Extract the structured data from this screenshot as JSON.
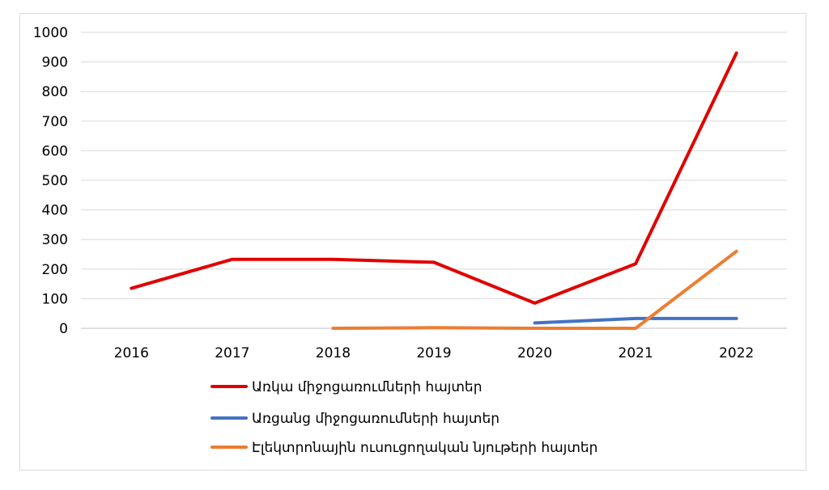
{
  "chart_data": {
    "type": "line",
    "categories": [
      "2016",
      "2017",
      "2018",
      "2019",
      "2020",
      "2021",
      "2022"
    ],
    "ylim": [
      0,
      1000
    ],
    "yticks": [
      "0",
      "100",
      "200",
      "300",
      "400",
      "500",
      "600",
      "700",
      "800",
      "900",
      "1000"
    ],
    "grid": true,
    "legend_position": "bottom",
    "series": [
      {
        "name": "Առկա միջոցառումների հայտեր",
        "color": "#e00000",
        "values": [
          135,
          233,
          233,
          223,
          85,
          218,
          930
        ]
      },
      {
        "name": "Առցանց միջոցառումների հայտեր",
        "color": "#4472c4",
        "values": [
          null,
          null,
          null,
          null,
          18,
          33,
          33
        ]
      },
      {
        "name": "Էլեկտրոնային ուսուցողական նյութերի հայտեր",
        "color": "#ed7d31",
        "values": [
          null,
          null,
          0,
          2,
          0,
          0,
          260
        ]
      }
    ]
  }
}
